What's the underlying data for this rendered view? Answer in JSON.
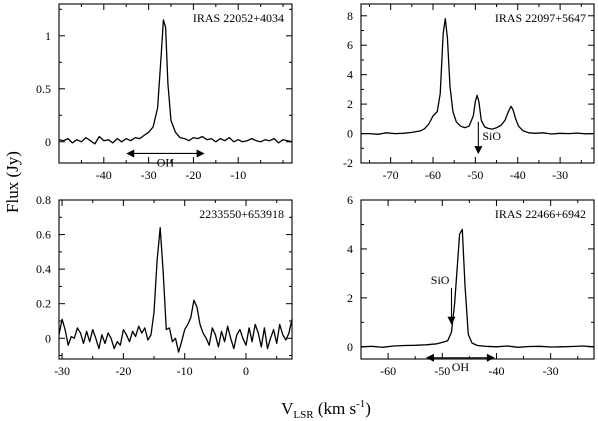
{
  "figure": {
    "ylabel": "Flux (Jy)",
    "xlabel_main": "V",
    "xlabel_sub": "LSR",
    "xlabel_units": " (km s",
    "xlabel_exp": "-1",
    "xlabel_close": ")"
  },
  "chart_data": [
    {
      "type": "line",
      "title": "IRAS 22052+4034",
      "xlim": [
        -50,
        2
      ],
      "ylim": [
        -0.2,
        1.3
      ],
      "xticks": [
        -40,
        -30,
        -20,
        -10
      ],
      "yticks": [
        0,
        0.5,
        1
      ],
      "ytick_labels": [
        "0",
        "0.5",
        "1"
      ],
      "annotations": [
        {
          "type": "double-arrow",
          "label": "OH",
          "x_range": [
            -35,
            -17.5
          ],
          "y": -0.11
        }
      ],
      "x": [
        -50,
        -49,
        -48,
        -47,
        -46,
        -45,
        -44,
        -43,
        -42,
        -41,
        -40,
        -39,
        -38,
        -37,
        -36,
        -35,
        -34,
        -33,
        -32,
        -31,
        -30,
        -29,
        -28,
        -27.2,
        -26.7,
        -26.2,
        -25.7,
        -25,
        -24,
        -23,
        -22,
        -21,
        -20,
        -19,
        -18,
        -17,
        -16,
        -15,
        -14,
        -13,
        -12,
        -11,
        -10,
        -9,
        -8,
        -7,
        -6,
        -5,
        -4,
        -3,
        -2,
        -1,
        0,
        1,
        2
      ],
      "y": [
        0.02,
        0.01,
        0.03,
        -0.01,
        0.02,
        0.0,
        0.04,
        0.01,
        -0.02,
        0.05,
        0.01,
        0.02,
        -0.01,
        0.03,
        0.0,
        0.03,
        0.01,
        0.04,
        0.03,
        0.06,
        0.09,
        0.14,
        0.32,
        0.82,
        1.15,
        1.08,
        0.55,
        0.2,
        0.09,
        0.04,
        0.03,
        0.01,
        0.04,
        0.03,
        0.05,
        0.02,
        0.03,
        0.0,
        0.03,
        0.01,
        0.04,
        0.0,
        0.02,
        0.0,
        0.01,
        0.03,
        0.01,
        0.0,
        0.02,
        0.01,
        0.03,
        -0.01,
        0.02,
        0.01,
        0.0
      ]
    },
    {
      "type": "line",
      "title": "IRAS 22097+5647",
      "xlim": [
        -77,
        -22
      ],
      "ylim": [
        -2,
        8.8
      ],
      "xticks": [
        -70,
        -60,
        -50,
        -40,
        -30
      ],
      "yticks": [
        -2,
        0,
        2,
        4,
        6,
        8
      ],
      "ytick_labels": [
        "-2",
        "0",
        "2",
        "4",
        "6",
        "8"
      ],
      "annotations": [
        {
          "type": "down-arrow",
          "label": "SiO",
          "x": -49.3,
          "y_from": 0.8,
          "y_to": -1.4
        }
      ],
      "x": [
        -77,
        -75,
        -73,
        -71,
        -69,
        -67,
        -65,
        -63,
        -62,
        -61,
        -60,
        -59,
        -58.3,
        -57.6,
        -57.1,
        -56.6,
        -56,
        -55.3,
        -54.5,
        -53.5,
        -52.5,
        -51.5,
        -50.5,
        -50,
        -49.6,
        -49.2,
        -48.6,
        -47.8,
        -47,
        -46,
        -45,
        -44,
        -43,
        -42.2,
        -41.6,
        -41.1,
        -40.5,
        -39.8,
        -38.8,
        -37.5,
        -36,
        -34,
        -32,
        -30,
        -28,
        -26,
        -24,
        -22
      ],
      "y": [
        0,
        0,
        -0.05,
        0.05,
        0,
        0.02,
        0.08,
        0.18,
        0.32,
        0.65,
        1.2,
        1.5,
        2.7,
        6.8,
        7.8,
        6.5,
        3.2,
        1.5,
        0.8,
        0.5,
        0.4,
        0.5,
        1.2,
        2.2,
        2.6,
        2.2,
        0.9,
        0.45,
        0.35,
        0.3,
        0.4,
        0.55,
        0.9,
        1.5,
        1.85,
        1.6,
        1.0,
        0.5,
        0.2,
        0.06,
        0.02,
        0.05,
        -0.03,
        0.02,
        0.0,
        0.03,
        -0.02,
        0.0
      ]
    },
    {
      "type": "line",
      "title": "2233550+653918",
      "xlim": [
        -30.5,
        7.5
      ],
      "ylim": [
        -0.12,
        0.8
      ],
      "xticks": [
        -30,
        -20,
        -10,
        0
      ],
      "yticks": [
        0,
        0.2,
        0.4,
        0.6,
        0.8
      ],
      "ytick_labels": [
        "0",
        "0.2",
        "0.4",
        "0.6",
        "0.8"
      ],
      "annotations": [],
      "x": [
        -30.5,
        -30,
        -29.5,
        -29,
        -28.5,
        -28,
        -27.5,
        -27,
        -26.5,
        -26,
        -25.5,
        -25,
        -24.5,
        -24,
        -23.5,
        -23,
        -22.5,
        -22,
        -21.5,
        -21,
        -20.5,
        -20,
        -19.5,
        -19,
        -18.5,
        -18,
        -17.5,
        -17,
        -16.5,
        -16,
        -15.5,
        -15,
        -14.5,
        -14,
        -13.5,
        -13,
        -12.5,
        -12,
        -11.5,
        -11,
        -10.5,
        -10,
        -9.5,
        -9,
        -8.5,
        -8,
        -7.5,
        -7,
        -6.5,
        -6,
        -5.5,
        -5,
        -4.5,
        -4,
        -3.5,
        -3,
        -2.5,
        -2,
        -1.5,
        -1,
        -0.5,
        0,
        0.5,
        1,
        1.5,
        2,
        2.5,
        3,
        3.5,
        4,
        4.5,
        5,
        5.5,
        6,
        6.5,
        7,
        7.5
      ],
      "y": [
        0.02,
        0.11,
        0.05,
        -0.04,
        0.01,
        0.0,
        0.06,
        0.03,
        -0.03,
        0.04,
        -0.02,
        0.05,
        0.0,
        -0.06,
        0.02,
        -0.03,
        0.03,
        0.0,
        -0.06,
        -0.02,
        -0.04,
        0.05,
        0.02,
        -0.02,
        0.04,
        0.01,
        0.07,
        0.03,
        0.06,
        -0.01,
        0.02,
        0.15,
        0.45,
        0.64,
        0.38,
        0.05,
        0.06,
        -0.02,
        0.0,
        -0.08,
        -0.02,
        0.05,
        0.08,
        0.12,
        0.22,
        0.18,
        0.08,
        0.03,
        0.0,
        -0.04,
        0.06,
        0.02,
        -0.05,
        0.04,
        -0.02,
        0.07,
        0.0,
        -0.06,
        0.02,
        0.05,
        0.0,
        -0.04,
        0.06,
        -0.02,
        0.08,
        0.03,
        -0.05,
        0.06,
        -0.06,
        0.0,
        0.05,
        -0.03,
        0.08,
        0.02,
        -0.01,
        0.03,
        0.11
      ]
    },
    {
      "type": "line",
      "title": "IRAS 22466+6942",
      "xlim": [
        -65,
        -22
      ],
      "ylim": [
        -0.5,
        6
      ],
      "xticks": [
        -60,
        -50,
        -40,
        -30
      ],
      "yticks": [
        0,
        2,
        4,
        6
      ],
      "ytick_labels": [
        "0",
        "2",
        "4",
        "6"
      ],
      "annotations": [
        {
          "type": "down-arrow",
          "label": "SiO",
          "x": -48.3,
          "y_from": 2.4,
          "y_to": 0.9
        },
        {
          "type": "double-arrow",
          "label": "OH",
          "x_range": [
            -53,
            -40.3
          ],
          "y": -0.45
        }
      ],
      "x": [
        -65,
        -63,
        -61,
        -59,
        -57,
        -55,
        -53,
        -51,
        -50,
        -49,
        -48.3,
        -47.7,
        -47.2,
        -46.8,
        -46.3,
        -45.8,
        -45.2,
        -44.5,
        -43.5,
        -42,
        -40,
        -38,
        -36,
        -34,
        -32,
        -30,
        -28,
        -26,
        -24,
        -22
      ],
      "y": [
        0.0,
        0.02,
        -0.02,
        0.03,
        0.05,
        0.06,
        0.08,
        0.12,
        0.18,
        0.25,
        0.6,
        1.8,
        3.4,
        4.6,
        4.8,
        2.5,
        0.5,
        0.15,
        0.05,
        0.02,
        0.0,
        0.03,
        -0.02,
        0.01,
        0.02,
        -0.01,
        0.0,
        0.01,
        0.03,
        0.0
      ]
    }
  ]
}
